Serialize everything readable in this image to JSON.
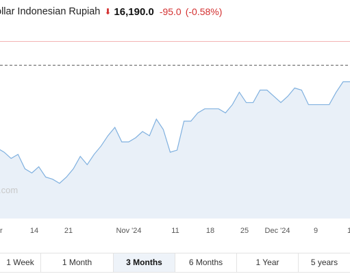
{
  "header": {
    "pair": "ollar Indonesian Rupiah",
    "arrow": "⬇",
    "price": "16,190.0",
    "change": "-95.0",
    "change_pct": "(-0.58%)"
  },
  "watermark": ".com",
  "colors": {
    "line": "#7fb0df",
    "fill": "#e9f0f8",
    "down": "#d32f2f",
    "ref_line": "#555555",
    "top_line": "#f3b3b3"
  },
  "chart_data": {
    "type": "area",
    "grid": false,
    "x_tick_labels": [
      "r",
      "14",
      "21",
      "Nov '24",
      "11",
      "18",
      "25",
      "Dec '24",
      "9",
      "1"
    ],
    "ylim": [
      15450,
      16300
    ],
    "reference_line": 16190.0,
    "values": [
      15790,
      15770,
      15740,
      15760,
      15690,
      15670,
      15700,
      15650,
      15640,
      15620,
      15650,
      15690,
      15750,
      15710,
      15760,
      15800,
      15850,
      15890,
      15820,
      15820,
      15840,
      15870,
      15850,
      15930,
      15880,
      15770,
      15780,
      15920,
      15920,
      15960,
      15980,
      15980,
      15980,
      15960,
      16000,
      16060,
      16010,
      16010,
      16070,
      16070,
      16040,
      16010,
      16040,
      16080,
      16070,
      16000,
      16000,
      16000,
      16000,
      16060,
      16110,
      16110
    ]
  },
  "tabs": [
    {
      "label": "1 Week",
      "active": false
    },
    {
      "label": "1 Month",
      "active": false
    },
    {
      "label": "3 Months",
      "active": true
    },
    {
      "label": "6 Months",
      "active": false
    },
    {
      "label": "1 Year",
      "active": false
    },
    {
      "label": "5 years",
      "active": false
    }
  ]
}
